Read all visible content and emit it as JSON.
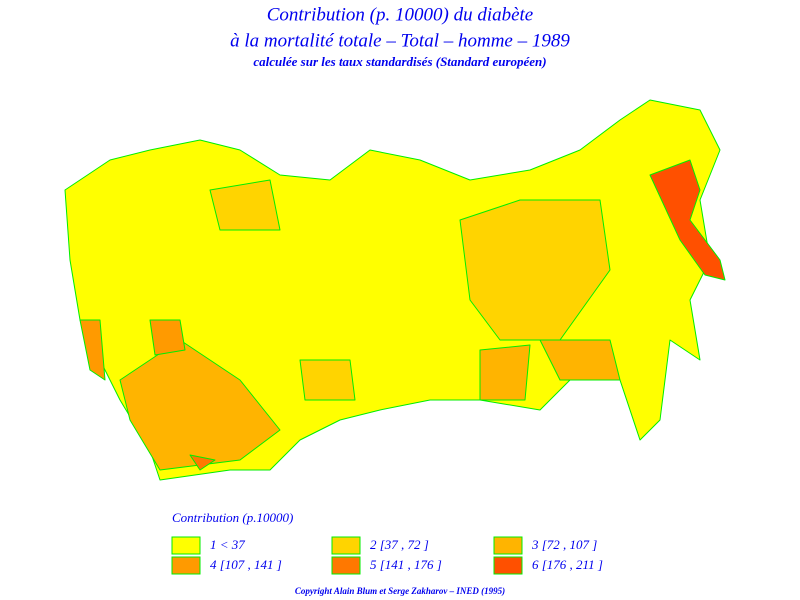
{
  "header": {
    "title_line1": "Contribution (p. 10000) du diabète",
    "title_line2": "à la mortalité totale – Total – homme – 1989",
    "subtitle": "calculée sur les taux standardisés (Standard européen)"
  },
  "legend": {
    "title": "Contribution (p.10000)",
    "items": [
      {
        "label": "1 < 37",
        "color": "#ffff00"
      },
      {
        "label": "2 [37 , 72 ]",
        "color": "#ffd400"
      },
      {
        "label": "3 [72 , 107 ]",
        "color": "#ffb400"
      },
      {
        "label": "4 [107 , 141 ]",
        "color": "#ff9a00"
      },
      {
        "label": "5 [141 , 176 ]",
        "color": "#ff7800"
      },
      {
        "label": "6 [176 , 211 ]",
        "color": "#ff5000"
      }
    ]
  },
  "footer": {
    "copyright": "Copyright Alain Blum et Serge Zakharov – INED (1995)"
  }
}
